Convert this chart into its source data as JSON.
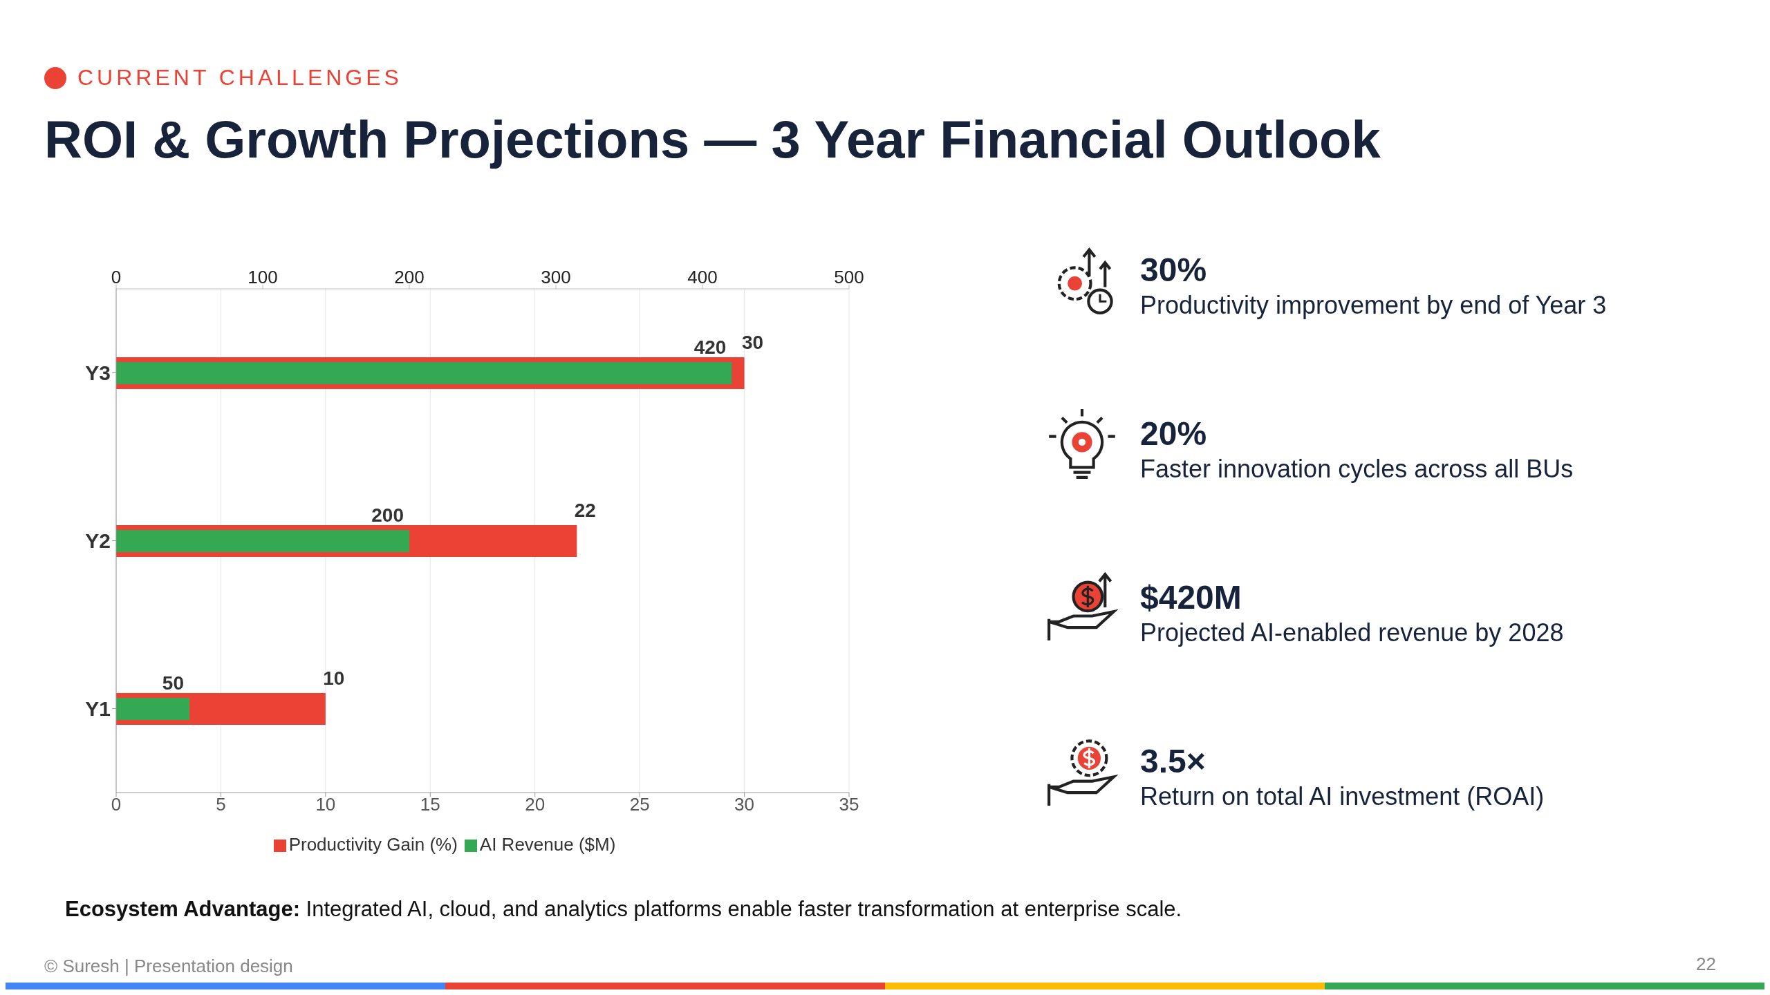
{
  "chart_data": [
    {
      "type": "bar",
      "title": "ROI & Growth Projections — 3 Year Financial Outlook",
      "subtitle": "CURRENT CHALLENGES",
      "orientation": "horizontal",
      "categories": [
        "Y3",
        "Y2",
        "Y1"
      ],
      "series": [
        {
          "name": "Productivity Gain (%)",
          "color": "#ea4335",
          "values": [
            30,
            22,
            10
          ]
        },
        {
          "name": "AI Revenue ($M)",
          "color": "#34a853",
          "values": [
            420,
            200,
            50
          ],
          "axis": "x2"
        }
      ],
      "xlim": [
        0,
        35
      ],
      "xticks": [
        0,
        5,
        10,
        15,
        20,
        25,
        30,
        35
      ],
      "x2lim": [
        0,
        500
      ],
      "x2ticks": [
        0,
        100,
        200,
        300,
        400,
        500
      ],
      "grid": "x",
      "legend": "bottom",
      "data_labels": true,
      "annotations": [
        "Ecosystem Advantage: Integrated AI, cloud, and analytics platforms enable faster transformation at enterprise scale.",
        "© Suresh | Presentation design",
        "22"
      ]
    },
    {
      "type": "other",
      "annotations": [
        "30%",
        "Productivity improvement by end of Year 3",
        "20%",
        "Faster innovation cycles across all BUs",
        "$420M",
        "Projected AI-enabled revenue by 2028",
        "3.5×",
        "Return on total AI investment (ROAI)"
      ]
    }
  ]
}
